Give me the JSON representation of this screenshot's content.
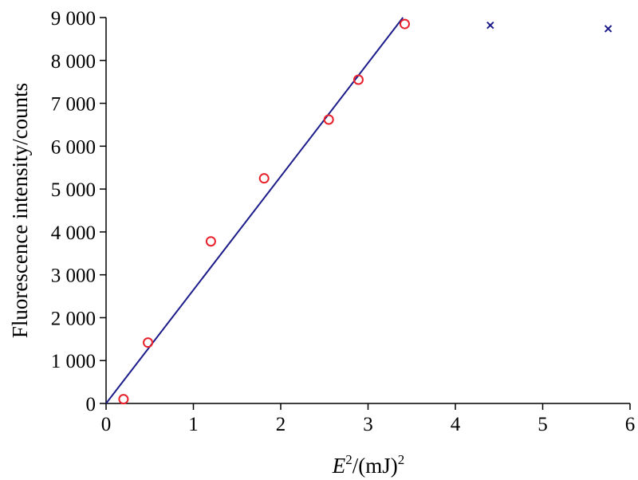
{
  "chart_data": {
    "type": "scatter",
    "xlabel": {
      "var": "E",
      "var_sup": "2",
      "unit": "/(mJ)",
      "unit_sup": "2"
    },
    "ylabel": "Fluorescence intensity/counts",
    "xlim": [
      0,
      6
    ],
    "ylim": [
      0,
      9000
    ],
    "x_ticks": [
      "0",
      "1",
      "2",
      "3",
      "4",
      "5",
      "6"
    ],
    "y_ticks": [
      "0",
      "1 000",
      "2 000",
      "3 000",
      "4 000",
      "5 000",
      "6 000",
      "7 000",
      "8 000",
      "9 000"
    ],
    "grid": false,
    "legend": "none",
    "colors": {
      "circles": "#e8202a",
      "crosses": "#1c1c8a",
      "fit_line": "#1c1c8a"
    },
    "series": [
      {
        "marker": "circle",
        "x": [
          0.2,
          0.48,
          1.2,
          1.81,
          2.55,
          2.89,
          3.42
        ],
        "y": [
          100,
          1420,
          3780,
          5250,
          6620,
          7550,
          8850
        ]
      },
      {
        "marker": "x",
        "x": [
          4.4,
          5.75
        ],
        "y": [
          8820,
          8740
        ]
      },
      {
        "marker": "line",
        "x": [
          0,
          3.4
        ],
        "y": [
          0,
          9000
        ]
      }
    ]
  }
}
